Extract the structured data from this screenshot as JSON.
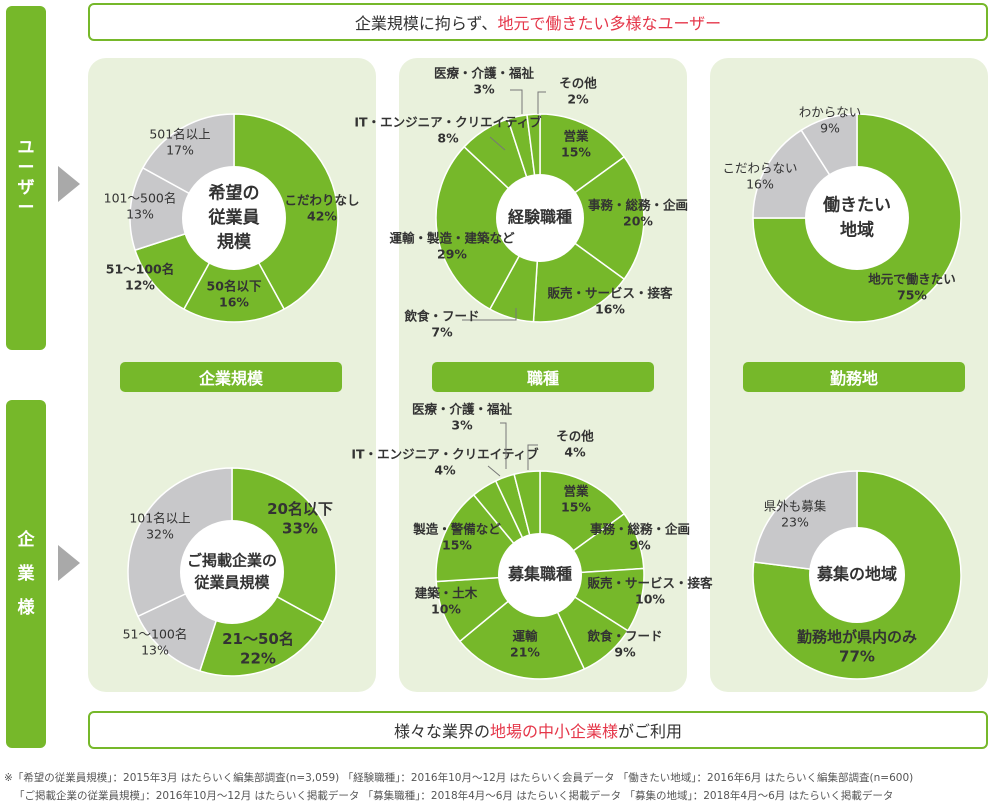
{
  "banner_top": {
    "pre": "企業規模に拘らず、",
    "hl": "地元で働きたい多様なユーザー"
  },
  "banner_bottom": {
    "pre": "様々な業界の ",
    "hl": "地場の中小企業様",
    "post": " がご利用"
  },
  "side": {
    "user": [
      "ユ",
      "ー",
      "ザ",
      "ー"
    ],
    "company": [
      "企",
      "業",
      "様"
    ]
  },
  "labels": {
    "size": "企業規模",
    "job": "職種",
    "area": "勤務地"
  },
  "colors": {
    "green": "#76b82a",
    "gray": "#c8c8ca",
    "accent": "#e5374a",
    "panel": "#e9f1dc"
  },
  "footnotes": [
    "※「希望の従業員規模」：2015年3月 はたらいく編集部調査(n=3,059) 「経験職種」：2016年10月～12月 はたらいく会員データ 「働きたい地域」：2016年6月 はたらいく編集部調査(n=600)",
    "「ご掲載企業の従業員規模」：2016年10月～12月 はたらいく掲載データ 「募集職種」：2018年4月～6月 はたらいく掲載データ 「募集の地域」：2018年4月～6月 はたらいく掲載データ"
  ],
  "chart_data": [
    {
      "type": "pie",
      "title": "希望の従業員規模",
      "center": [
        "希望の",
        "従業員",
        "規模"
      ],
      "slices": [
        {
          "label": "こだわりなし",
          "value": 42
        },
        {
          "label": "50名以下",
          "value": 16
        },
        {
          "label": "51～100名",
          "value": 12
        },
        {
          "label": "101～500名",
          "value": 13
        },
        {
          "label": "501名以上",
          "value": 17
        }
      ]
    },
    {
      "type": "pie",
      "title": "経験職種",
      "center": [
        "経験職種"
      ],
      "slices": [
        {
          "label": "営業",
          "value": 15
        },
        {
          "label": "事務・総務・企画",
          "value": 20
        },
        {
          "label": "販売・サービス・接客",
          "value": 16
        },
        {
          "label": "飲食・フード",
          "value": 7
        },
        {
          "label": "運輸・製造・建築など",
          "value": 29
        },
        {
          "label": "IT・エンジニア・クリエイティブ",
          "value": 8
        },
        {
          "label": "医療・介護・福祉",
          "value": 3
        },
        {
          "label": "その他",
          "value": 2
        }
      ]
    },
    {
      "type": "pie",
      "title": "働きたい地域",
      "center": [
        "働きたい",
        "地域"
      ],
      "slices": [
        {
          "label": "地元で働きたい",
          "value": 75
        },
        {
          "label": "こだわらない",
          "value": 16
        },
        {
          "label": "わからない",
          "value": 9
        }
      ]
    },
    {
      "type": "pie",
      "title": "ご掲載企業の従業員規模",
      "center": [
        "ご掲載企業の",
        "従業員規模"
      ],
      "slices": [
        {
          "label": "20名以下",
          "value": 33
        },
        {
          "label": "21～50名",
          "value": 22
        },
        {
          "label": "51～100名",
          "value": 13
        },
        {
          "label": "101名以上",
          "value": 32
        }
      ]
    },
    {
      "type": "pie",
      "title": "募集職種",
      "center": [
        "募集職種"
      ],
      "slices": [
        {
          "label": "営業",
          "value": 15
        },
        {
          "label": "事務・総務・企画",
          "value": 9
        },
        {
          "label": "販売・サービス・接客",
          "value": 10
        },
        {
          "label": "飲食・フード",
          "value": 9
        },
        {
          "label": "運輸",
          "value": 21
        },
        {
          "label": "建築・土木",
          "value": 10
        },
        {
          "label": "製造・警備など",
          "value": 15
        },
        {
          "label": "IT・エンジニア・クリエイティブ",
          "value": 4
        },
        {
          "label": "医療・介護・福祉",
          "value": 3
        },
        {
          "label": "その他",
          "value": 4
        }
      ]
    },
    {
      "type": "pie",
      "title": "募集の地域",
      "center": [
        "募集の地域"
      ],
      "slices": [
        {
          "label": "勤務地が県内のみ",
          "value": 77
        },
        {
          "label": "県外も募集",
          "value": 23
        }
      ]
    }
  ]
}
